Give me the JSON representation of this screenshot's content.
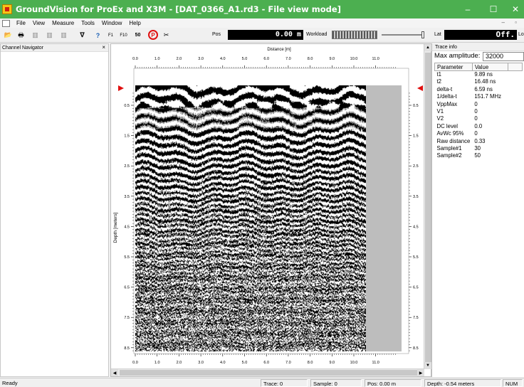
{
  "window": {
    "title": "GroundVision for ProEx and X3M - [DAT_0366_A1.rd3 - File view mode]",
    "minimize": "–",
    "maximize": "☐",
    "close": "✕"
  },
  "menu": {
    "items": [
      "File",
      "View",
      "Measure",
      "Tools",
      "Window",
      "Help"
    ],
    "mdi_controls": "– ▫"
  },
  "toolbar": {
    "buttons": [
      {
        "name": "open-folder-icon",
        "glyph": "📂"
      },
      {
        "name": "print-icon",
        "glyph": "🖶"
      },
      {
        "name": "doc-1-icon",
        "glyph": "▥"
      },
      {
        "name": "doc-2-icon",
        "glyph": "▥"
      },
      {
        "name": "doc-3-icon",
        "glyph": "▥"
      },
      {
        "name": "filter-icon",
        "glyph": "∇"
      },
      {
        "name": "help-icon",
        "glyph": "?"
      },
      {
        "name": "marker-f1-icon",
        "glyph": "F1"
      },
      {
        "name": "marker-f10-icon",
        "glyph": "F10"
      },
      {
        "name": "marker-50-icon",
        "glyph": "50"
      },
      {
        "name": "stop-icon",
        "glyph": "P"
      },
      {
        "name": "tools-icon",
        "glyph": "✂"
      }
    ],
    "pos_label": "Pos",
    "pos_value": "0.00 m",
    "workload_label": "Workload",
    "lat_label": "Lat",
    "lat_value": "Off.",
    "lo_label": "Lo"
  },
  "navigator": {
    "title": "Channel Navigator",
    "close": "×"
  },
  "viewer": {
    "x_axis_title": "Distance [m]",
    "y_axis_title": "Depth [meters]",
    "x_ticks": [
      "0.0",
      "1.0",
      "2.0",
      "3.0",
      "4.0",
      "5.0",
      "6.0",
      "7.0",
      "8.0",
      "9.0",
      "10.0",
      "11.0"
    ],
    "y_ticks": [
      "0.5",
      "1.5",
      "2.5",
      "3.5",
      "4.5",
      "5.5",
      "6.5",
      "7.5",
      "8.5"
    ],
    "scroll_up": "▲",
    "scroll_down": "▼",
    "scroll_left": "◀",
    "scroll_right": "▶",
    "marker_color": "#e01010",
    "data_color": "#000000",
    "background_color": "#bdbdbd"
  },
  "trace_info": {
    "title": "Trace info",
    "max_amplitude_label": "Max amplitude:",
    "max_amplitude_value": "32000",
    "col_parameter": "Parameter",
    "col_value": "Value",
    "rows": [
      {
        "param": "t1",
        "value": "9.89 ns"
      },
      {
        "param": "t2",
        "value": "16.48 ns"
      },
      {
        "param": "delta-t",
        "value": "6.59 ns"
      },
      {
        "param": "1/delta-t",
        "value": "151.7 MHz"
      },
      {
        "param": "VppMax",
        "value": "0"
      },
      {
        "param": "V1",
        "value": "0"
      },
      {
        "param": "V2",
        "value": "0"
      },
      {
        "param": "DC level",
        "value": "0.0"
      },
      {
        "param": "AvWc 95%",
        "value": "0"
      },
      {
        "param": "Raw distance",
        "value": "0.33"
      },
      {
        "param": "Sample#1",
        "value": "30"
      },
      {
        "param": "Sample#2",
        "value": "50"
      }
    ]
  },
  "status": {
    "ready": "Ready",
    "trace": "Trace: 0",
    "sample": "Sample: 0",
    "pos": "Pos:  0.00 m",
    "depth": "Depth: -0.54 meters",
    "num": "NUM"
  }
}
